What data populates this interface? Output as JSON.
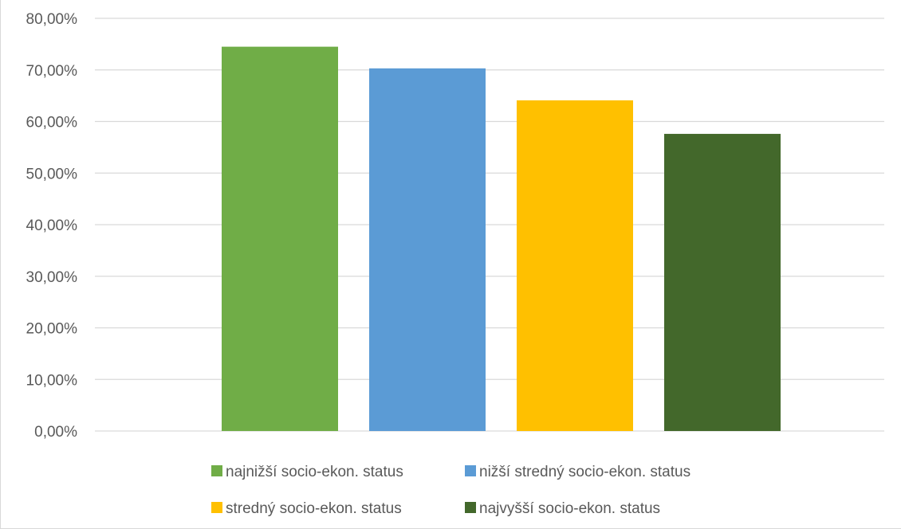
{
  "chart_data": {
    "type": "bar",
    "title": "",
    "xlabel": "",
    "ylabel": "",
    "ylim": [
      0,
      0.8
    ],
    "y_ticks": [
      0,
      0.1,
      0.2,
      0.3,
      0.4,
      0.5,
      0.6,
      0.7,
      0.8
    ],
    "y_tick_labels": [
      "0,00%",
      "10,00%",
      "20,00%",
      "30,00%",
      "40,00%",
      "50,00%",
      "60,00%",
      "70,00%",
      "80,00%"
    ],
    "grid": true,
    "legend_position": "bottom",
    "series": [
      {
        "name": "najnižší socio-ekon. status",
        "value": 0.745,
        "color": "#70ad47"
      },
      {
        "name": "nižší stredný socio-ekon. status",
        "value": 0.703,
        "color": "#5b9bd5"
      },
      {
        "name": "stredný socio-ekon. status",
        "value": 0.641,
        "color": "#ffc000"
      },
      {
        "name": "najvyšší socio-ekon. status",
        "value": 0.576,
        "color": "#43682b"
      }
    ]
  }
}
